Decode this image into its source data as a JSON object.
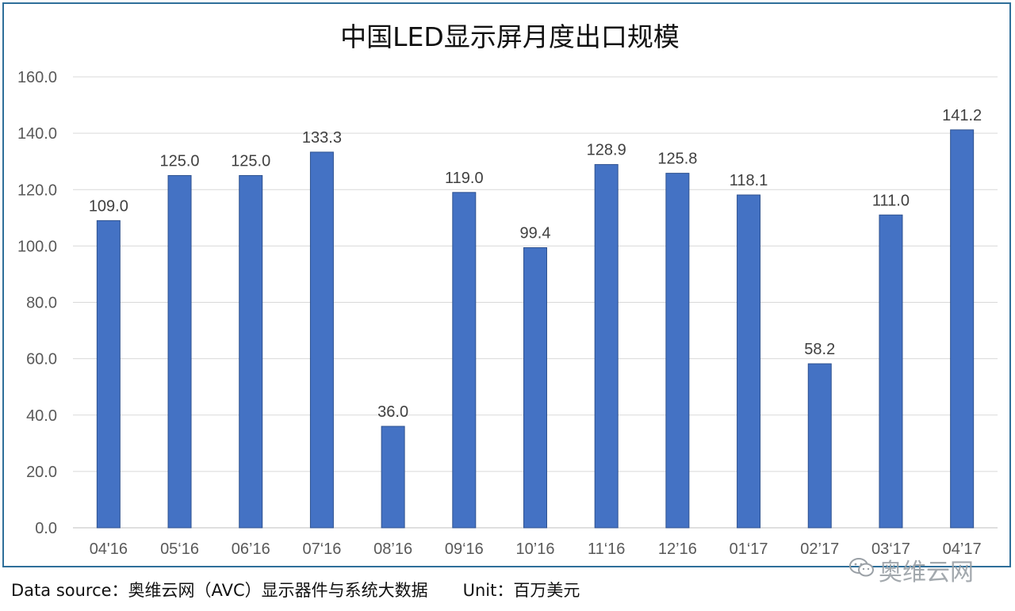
{
  "chart_data": {
    "type": "bar",
    "title": "中国LED显示屏月度出口规模",
    "categories": [
      "04'16",
      "05‘16",
      "06’16",
      "07‘16",
      "08’16",
      "09‘16",
      "10’16",
      "11‘16",
      "12’16",
      "01‘17",
      "02’17",
      "03‘17",
      "04’17"
    ],
    "values": [
      109.0,
      125.0,
      125.0,
      133.3,
      36.0,
      119.0,
      99.4,
      128.9,
      125.8,
      118.1,
      58.2,
      111.0,
      141.2
    ],
    "value_labels": [
      "109.0",
      "125.0",
      "125.0",
      "133.3",
      "36.0",
      "119.0",
      "99.4",
      "128.9",
      "125.8",
      "118.1",
      "58.2",
      "111.0",
      "141.2"
    ],
    "yticks": [
      "0.0",
      "20.0",
      "40.0",
      "60.0",
      "80.0",
      "100.0",
      "120.0",
      "140.0",
      "160.0"
    ],
    "ylim": [
      0,
      160
    ],
    "grid": true,
    "bar_color": "#4472c4",
    "bar_edge_color": "#2f528f"
  },
  "footer": {
    "source": "Data source：奥维云网（AVC）显示器件与系统大数据",
    "unit": "Unit：百万美元"
  },
  "watermark": {
    "text": "奥维云网",
    "icon": "wechat-icon"
  }
}
